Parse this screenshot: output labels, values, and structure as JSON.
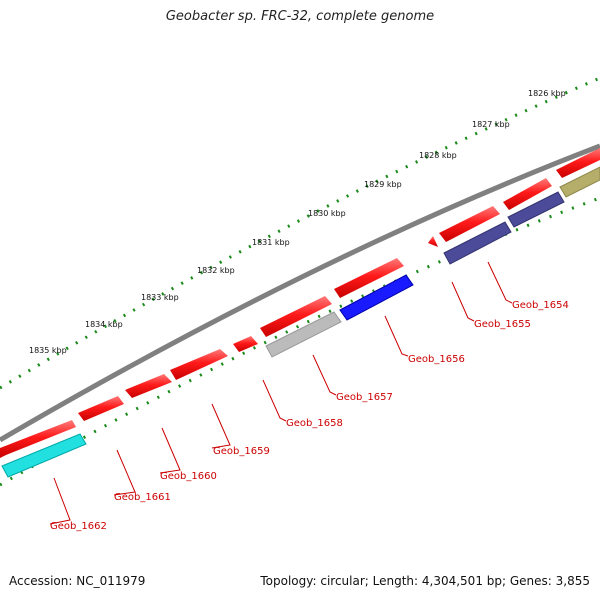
{
  "title": "Geobacter sp. FRC-32, complete genome",
  "footer": {
    "accession": "Accession: NC_011979",
    "summary": "Topology: circular; Length: 4,304,501 bp; Genes: 3,855"
  },
  "ruler": {
    "ticks": [
      {
        "label": "1826 kbp",
        "kbp": 1826
      },
      {
        "label": "1827 kbp",
        "kbp": 1827
      },
      {
        "label": "1828 kbp",
        "kbp": 1828
      },
      {
        "label": "1829 kbp",
        "kbp": 1829
      },
      {
        "label": "1830 kbp",
        "kbp": 1830
      },
      {
        "label": "1831 kbp",
        "kbp": 1831
      },
      {
        "label": "1832 kbp",
        "kbp": 1832
      },
      {
        "label": "1833 kbp",
        "kbp": 1833
      },
      {
        "label": "1834 kbp",
        "kbp": 1834
      },
      {
        "label": "1835 kbp",
        "kbp": 1835
      }
    ]
  },
  "genes": [
    {
      "label": "Geob_1654",
      "color": "#4b4b9a"
    },
    {
      "label": "Geob_1655",
      "color": "#ff2020"
    },
    {
      "label": "Geob_1656",
      "color": "#1a1aff"
    },
    {
      "label": "Geob_1657",
      "color": "#bbbbbb"
    },
    {
      "label": "Geob_1658",
      "color": "#ff2020"
    },
    {
      "label": "Geob_1659",
      "color": "#ff2020"
    },
    {
      "label": "Geob_1660",
      "color": "#ff2020"
    },
    {
      "label": "Geob_1661",
      "color": "#ff2020"
    },
    {
      "label": "Geob_1662",
      "color": "#22e0e0"
    }
  ],
  "colors": {
    "forward_cds": "#ff2020",
    "reverse_cds_dark": "#4b4b9a",
    "reverse_cds_blue": "#1a1aff",
    "reverse_cds_gray": "#bbbbbb",
    "reverse_cds_cyan": "#22e0e0",
    "reverse_cds_olive": "#b5ad6a",
    "backbone": "#808080",
    "tick_marks": "#1a8a1a",
    "gene_label": "#cc0000"
  }
}
